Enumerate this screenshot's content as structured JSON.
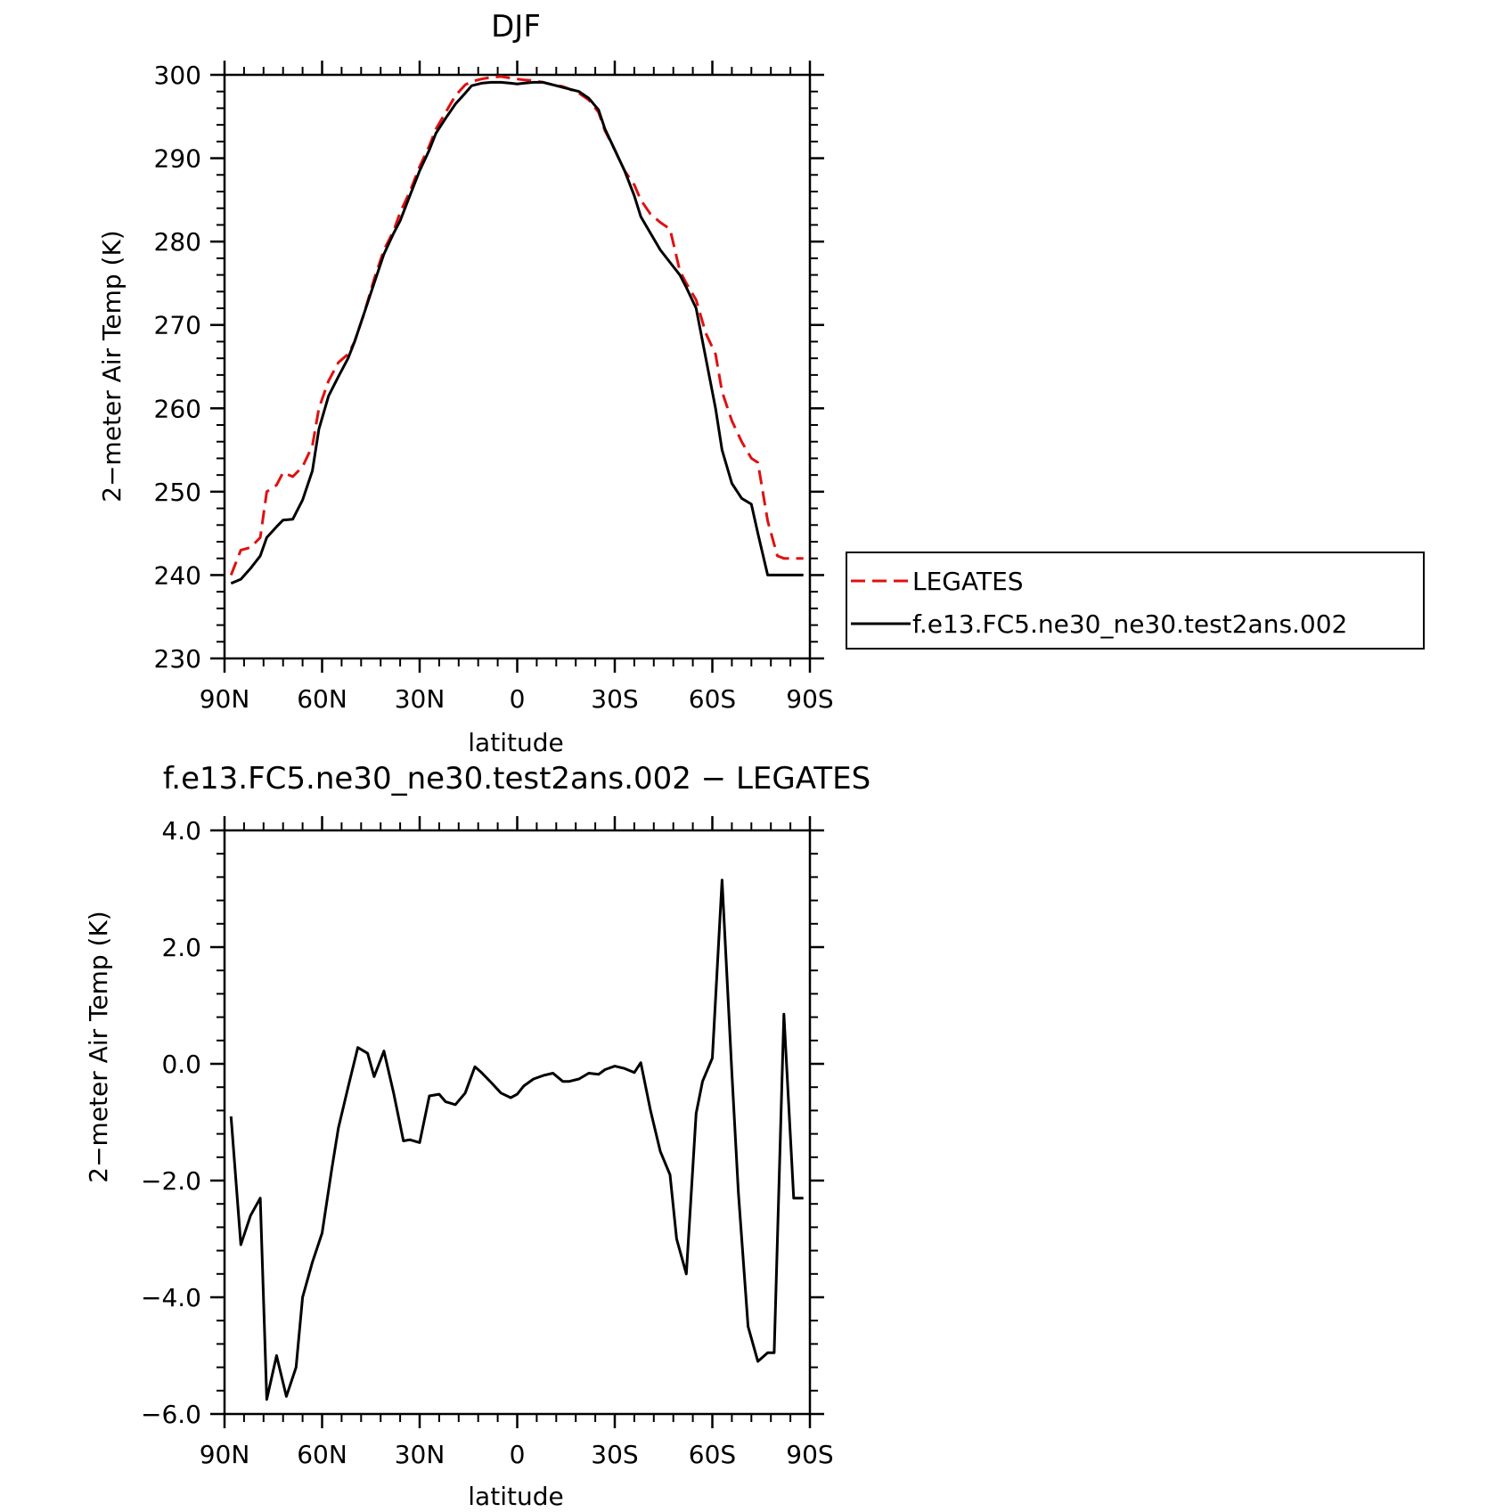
{
  "chart_data": [
    {
      "type": "line",
      "title": "DJF",
      "xlabel": "latitude",
      "ylabel": "2−meter Air Temp (K)",
      "xlim": [
        90,
        -90
      ],
      "ylim": [
        230,
        300
      ],
      "x_ticks": [
        {
          "value": 90,
          "label": "90N"
        },
        {
          "value": 60,
          "label": "60N"
        },
        {
          "value": 30,
          "label": "30N"
        },
        {
          "value": 0,
          "label": "0"
        },
        {
          "value": -30,
          "label": "30S"
        },
        {
          "value": -60,
          "label": "60S"
        },
        {
          "value": -90,
          "label": "90S"
        }
      ],
      "y_ticks": [
        {
          "value": 230,
          "label": "230"
        },
        {
          "value": 240,
          "label": "240"
        },
        {
          "value": 250,
          "label": "250"
        },
        {
          "value": 260,
          "label": "260"
        },
        {
          "value": 270,
          "label": "270"
        },
        {
          "value": 280,
          "label": "280"
        },
        {
          "value": 290,
          "label": "290"
        },
        {
          "value": 300,
          "label": "300"
        }
      ],
      "legend": {
        "placement": "right"
      },
      "series": [
        {
          "name": "LEGATES",
          "color": "#e01010",
          "dash": "dashed",
          "x": [
            88,
            85,
            82,
            79,
            77,
            74,
            72,
            69,
            66,
            63,
            61,
            58,
            55,
            52,
            50,
            47,
            44,
            41,
            38,
            36,
            33,
            30,
            27,
            25,
            22,
            19,
            16,
            14,
            11,
            8,
            5,
            2,
            0,
            -2,
            -5,
            -8,
            -11,
            -14,
            -16,
            -19,
            -22,
            -25,
            -27,
            -30,
            -33,
            -36,
            -38,
            -41,
            -44,
            -47,
            -50,
            -52,
            -55,
            -58,
            -61,
            -63,
            -66,
            -69,
            -72,
            -74,
            -77,
            -80,
            -82,
            -85,
            -88
          ],
          "y": [
            240,
            243,
            243.3,
            244.5,
            250,
            250.8,
            252.3,
            251.8,
            253,
            255.5,
            260,
            263.3,
            265.5,
            266.5,
            268,
            271.5,
            275.5,
            279,
            281.3,
            283.5,
            286,
            289,
            291.5,
            293.5,
            295.5,
            297.5,
            298.8,
            299.2,
            299.5,
            299.7,
            299.8,
            299.6,
            299.5,
            299.4,
            299.3,
            299.1,
            298.8,
            298.6,
            298.3,
            297.8,
            297,
            295.5,
            293.3,
            291,
            288.5,
            286.8,
            285,
            283.3,
            282.3,
            281.5,
            276.5,
            275,
            273,
            269,
            266.5,
            262,
            258.5,
            256,
            254,
            253.5,
            246.5,
            242.3,
            242,
            242,
            242
          ]
        },
        {
          "name": "f.e13.FC5.ne30_ne30.test2ans.002",
          "color": "#000000",
          "dash": "solid",
          "x": [
            88,
            85,
            82,
            79,
            77,
            74,
            72,
            69,
            66,
            63,
            61,
            58,
            55,
            52,
            50,
            47,
            44,
            41,
            38,
            36,
            33,
            30,
            27,
            25,
            22,
            19,
            16,
            14,
            11,
            8,
            5,
            2,
            0,
            -2,
            -5,
            -8,
            -11,
            -14,
            -16,
            -19,
            -22,
            -25,
            -27,
            -30,
            -33,
            -36,
            -38,
            -41,
            -44,
            -47,
            -50,
            -52,
            -55,
            -58,
            -61,
            -63,
            -66,
            -69,
            -72,
            -74,
            -77,
            -80,
            -82,
            -85,
            -88
          ],
          "y": [
            239,
            239.5,
            240.8,
            242.3,
            244.5,
            245.8,
            246.6,
            246.7,
            249,
            252.5,
            257.5,
            261.5,
            263.8,
            266,
            268,
            271.5,
            275,
            278.5,
            281,
            282.5,
            285.5,
            288.5,
            291,
            293,
            294.8,
            296.5,
            297.8,
            298.7,
            299,
            299.1,
            299.1,
            299,
            298.9,
            299,
            299.1,
            299.1,
            298.8,
            298.5,
            298.3,
            298,
            297.2,
            295.8,
            293.5,
            291,
            288.5,
            285.5,
            283,
            281,
            279,
            277.5,
            276,
            274.5,
            272,
            266,
            260,
            255,
            251,
            249.2,
            248.5,
            245,
            240,
            240,
            240,
            240,
            240
          ]
        }
      ]
    },
    {
      "type": "line",
      "title": "f.e13.FC5.ne30_ne30.test2ans.002 − LEGATES",
      "xlabel": "latitude",
      "ylabel": "2−meter Air Temp (K)",
      "xlim": [
        90,
        -90
      ],
      "ylim": [
        -6,
        4
      ],
      "x_ticks": [
        {
          "value": 90,
          "label": "90N"
        },
        {
          "value": 60,
          "label": "60N"
        },
        {
          "value": 30,
          "label": "30N"
        },
        {
          "value": 0,
          "label": "0"
        },
        {
          "value": -30,
          "label": "30S"
        },
        {
          "value": -60,
          "label": "60S"
        },
        {
          "value": -90,
          "label": "90S"
        }
      ],
      "y_ticks": [
        {
          "value": -6,
          "label": "−6.0"
        },
        {
          "value": -4,
          "label": "−4.0"
        },
        {
          "value": -2,
          "label": "−2.0"
        },
        {
          "value": 0,
          "label": "0.0"
        },
        {
          "value": 2,
          "label": "2.0"
        },
        {
          "value": 4,
          "label": "4.0"
        }
      ],
      "series": [
        {
          "color": "#000000",
          "dash": "solid",
          "x": [
            88,
            85,
            82,
            79,
            77,
            74,
            71,
            68,
            66,
            63,
            60,
            57,
            55,
            52,
            49,
            46,
            44,
            41,
            38,
            35,
            33,
            30,
            27,
            24,
            22,
            19,
            16,
            13,
            11,
            8,
            5,
            2,
            0,
            -2,
            -5,
            -8,
            -11,
            -14,
            -16,
            -19,
            -22,
            -25,
            -27,
            -30,
            -33,
            -36,
            -38,
            -41,
            -44,
            -47,
            -49,
            -52,
            -55,
            -57,
            -60,
            -63,
            -66,
            -68,
            -71,
            -74,
            -77,
            -79,
            -82,
            -85,
            -88
          ],
          "y": [
            -0.9,
            -3.1,
            -2.6,
            -2.3,
            -5.75,
            -5.0,
            -5.7,
            -5.2,
            -4.0,
            -3.4,
            -2.9,
            -1.8,
            -1.1,
            -0.4,
            0.28,
            0.18,
            -0.22,
            0.22,
            -0.5,
            -1.32,
            -1.3,
            -1.35,
            -0.55,
            -0.52,
            -0.65,
            -0.7,
            -0.5,
            -0.05,
            -0.15,
            -0.32,
            -0.5,
            -0.58,
            -0.52,
            -0.38,
            -0.26,
            -0.2,
            -0.16,
            -0.3,
            -0.3,
            -0.26,
            -0.16,
            -0.18,
            -0.1,
            -0.04,
            -0.08,
            -0.15,
            0.02,
            -0.8,
            -1.5,
            -1.9,
            -3.0,
            -3.6,
            -0.85,
            -0.3,
            0.1,
            3.15,
            -0.15,
            -2.2,
            -4.5,
            -5.1,
            -4.95,
            -4.95,
            0.85,
            -2.3,
            -2.3
          ]
        }
      ]
    }
  ]
}
